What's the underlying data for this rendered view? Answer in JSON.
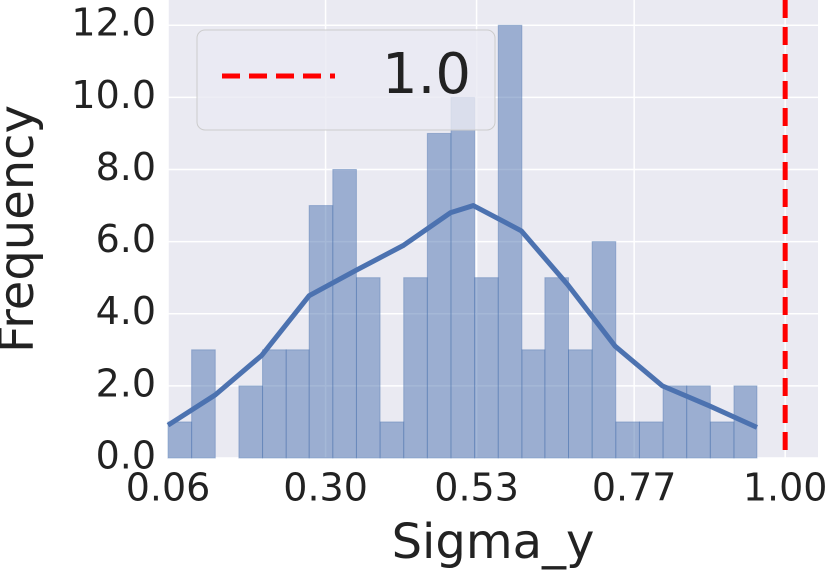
{
  "chart_data": {
    "type": "histogram",
    "xlabel": "Sigma_y",
    "ylabel": "Frequency",
    "bins": [
      0.06,
      0.096,
      0.132,
      0.168,
      0.204,
      0.24,
      0.275,
      0.311,
      0.347,
      0.383,
      0.419,
      0.455,
      0.491,
      0.527,
      0.563,
      0.599,
      0.634,
      0.67,
      0.706,
      0.742,
      0.778,
      0.814,
      0.85,
      0.886,
      0.922,
      0.957
    ],
    "counts": [
      1,
      3,
      0,
      2,
      3,
      3,
      7,
      8,
      5,
      1,
      5,
      9,
      10,
      5,
      12,
      3,
      5,
      3,
      6,
      1,
      1,
      2,
      2,
      1,
      2
    ],
    "color": "#4c72b0",
    "kde": {
      "x": [
        0.06,
        0.132,
        0.203,
        0.275,
        0.346,
        0.419,
        0.49,
        0.525,
        0.598,
        0.669,
        0.741,
        0.813,
        0.884,
        0.957
      ],
      "y": [
        0.91,
        1.75,
        2.85,
        4.5,
        5.2,
        5.9,
        6.8,
        7.0,
        6.3,
        4.8,
        3.1,
        2.0,
        1.45,
        0.85
      ]
    },
    "vline": {
      "x": 1.0,
      "label": "1.0",
      "color": "#ff0000"
    },
    "xlim": [
      0.06,
      1.05
    ],
    "ylim": [
      0,
      12.7
    ],
    "xticks": [
      0.06,
      {
        "value": 0.3,
        "label": "0.30"
      },
      0.53,
      0.77,
      {
        "value": 1.0,
        "label": "1.00"
      }
    ],
    "yticks": [
      {
        "value": 0,
        "label": "0.0"
      },
      {
        "value": 2,
        "label": "2.0"
      },
      {
        "value": 4,
        "label": "4.0"
      },
      {
        "value": 6,
        "label": "6.0"
      },
      {
        "value": 8,
        "label": "8.0"
      },
      {
        "value": 10,
        "label": "10.0"
      },
      {
        "value": 12,
        "label": "12.0"
      }
    ],
    "grid": true,
    "legend": "upper left"
  }
}
